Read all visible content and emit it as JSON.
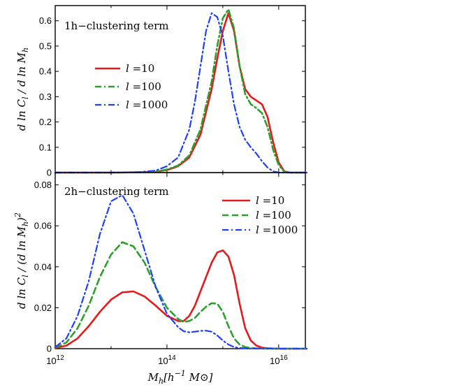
{
  "figure": {
    "xlabel_main": "M",
    "xlabel_sub": "h",
    "xlabel_rest": "[h",
    "xlabel_exp": "−1",
    "xlabel_end": " M⊙]",
    "x_ticks": [
      {
        "value": 1000000000000.0,
        "base": "10",
        "exp": "12"
      },
      {
        "value": 100000000000000.0,
        "base": "10",
        "exp": "14"
      },
      {
        "value": 1e+16,
        "base": "10",
        "exp": "16"
      }
    ],
    "xlim": [
      1000000000000.0,
      3e+16
    ]
  },
  "chart_data": [
    {
      "type": "line",
      "panel": "top",
      "annotation": "1h−clustering term",
      "ylabel": "d ln C_l / d ln M_h",
      "ylabel_parts": {
        "a": "d ln C",
        "a_sub": "l",
        "b": " / d ln M",
        "b_sub": "h"
      },
      "xscale": "log",
      "xlim": [
        1000000000000.0,
        3e+16
      ],
      "ylim": [
        0,
        0.66
      ],
      "y_ticks": [
        "0",
        "0.1",
        "0.2",
        "0.3",
        "0.4",
        "0.5",
        "0.6"
      ],
      "legend_position": "center-left",
      "series": [
        {
          "name": "l =10",
          "legend_l": "l",
          "legend_val": " =10",
          "color": "#e41a1c",
          "style": "solid",
          "width": 2.6,
          "log_x": [
            12.0,
            13.0,
            13.5,
            13.8,
            14.0,
            14.2,
            14.4,
            14.6,
            14.8,
            14.9,
            15.0,
            15.1,
            15.2,
            15.3,
            15.4,
            15.5,
            15.6,
            15.7,
            15.8,
            15.9,
            16.0,
            16.1,
            16.2,
            16.5
          ],
          "y": [
            0,
            0,
            0.001,
            0.003,
            0.01,
            0.025,
            0.06,
            0.15,
            0.33,
            0.45,
            0.56,
            0.63,
            0.56,
            0.42,
            0.33,
            0.3,
            0.285,
            0.27,
            0.22,
            0.12,
            0.04,
            0.005,
            0,
            0
          ]
        },
        {
          "name": "l =100",
          "legend_l": "l",
          "legend_val": " =100",
          "color": "#2ca02c",
          "style": "dash-dot",
          "width": 2.6,
          "log_x": [
            12.0,
            13.0,
            13.5,
            13.8,
            14.0,
            14.2,
            14.4,
            14.6,
            14.8,
            14.9,
            15.0,
            15.1,
            15.2,
            15.3,
            15.4,
            15.5,
            15.6,
            15.7,
            15.8,
            15.9,
            16.0,
            16.1,
            16.2,
            16.5
          ],
          "y": [
            0,
            0,
            0.001,
            0.004,
            0.012,
            0.028,
            0.068,
            0.17,
            0.36,
            0.5,
            0.61,
            0.645,
            0.57,
            0.42,
            0.31,
            0.27,
            0.255,
            0.235,
            0.18,
            0.09,
            0.03,
            0.004,
            0,
            0
          ]
        },
        {
          "name": "l =1000",
          "legend_l": "l",
          "legend_val": " =1000",
          "color": "#1f3fff",
          "style": "dash-dot",
          "width": 2.2,
          "log_x": [
            12.0,
            13.0,
            13.5,
            13.8,
            14.0,
            14.2,
            14.4,
            14.5,
            14.6,
            14.7,
            14.8,
            14.9,
            15.0,
            15.1,
            15.2,
            15.3,
            15.4,
            15.5,
            15.6,
            15.7,
            15.8,
            15.9,
            16.0,
            16.5
          ],
          "y": [
            0,
            0,
            0.002,
            0.008,
            0.025,
            0.06,
            0.17,
            0.28,
            0.42,
            0.56,
            0.63,
            0.615,
            0.54,
            0.4,
            0.27,
            0.18,
            0.13,
            0.1,
            0.075,
            0.045,
            0.02,
            0.005,
            0,
            0
          ]
        }
      ]
    },
    {
      "type": "line",
      "panel": "bottom",
      "annotation": "2h−clustering term",
      "ylabel": "d ln C_l / (d ln M_h)^2",
      "ylabel_parts": {
        "a": "d ln C",
        "a_sub": "l",
        "b": " / (d ln M",
        "b_sub": "h",
        "c": ")",
        "c_sup": "2"
      },
      "xscale": "log",
      "xlim": [
        1000000000000.0,
        3e+16
      ],
      "ylim": [
        0,
        0.086
      ],
      "y_ticks": [
        "0",
        "0.02",
        "0.04",
        "0.06",
        "0.08"
      ],
      "legend_position": "top-right",
      "series": [
        {
          "name": "l =10",
          "legend_l": "l",
          "legend_val": " =10",
          "color": "#e41a1c",
          "style": "solid",
          "width": 2.6,
          "log_x": [
            12.0,
            12.2,
            12.4,
            12.6,
            12.8,
            13.0,
            13.2,
            13.4,
            13.6,
            13.8,
            14.0,
            14.2,
            14.3,
            14.4,
            14.5,
            14.6,
            14.7,
            14.8,
            14.9,
            15.0,
            15.1,
            15.2,
            15.3,
            15.4,
            15.5,
            15.6,
            15.7,
            15.8,
            16.0,
            16.5
          ],
          "y": [
            0.0003,
            0.0015,
            0.005,
            0.011,
            0.018,
            0.024,
            0.0275,
            0.028,
            0.0255,
            0.021,
            0.016,
            0.0135,
            0.0135,
            0.016,
            0.021,
            0.028,
            0.035,
            0.042,
            0.047,
            0.048,
            0.045,
            0.036,
            0.022,
            0.01,
            0.004,
            0.0015,
            0.0005,
            0.0002,
            0,
            0
          ]
        },
        {
          "name": "l =100",
          "legend_l": "l",
          "legend_val": " =100",
          "color": "#2ca02c",
          "style": "dashed",
          "width": 2.6,
          "log_x": [
            12.0,
            12.2,
            12.4,
            12.6,
            12.8,
            13.0,
            13.2,
            13.4,
            13.6,
            13.8,
            14.0,
            14.2,
            14.3,
            14.4,
            14.5,
            14.6,
            14.7,
            14.8,
            14.9,
            15.0,
            15.1,
            15.2,
            15.3,
            15.4,
            15.5,
            15.6,
            15.8,
            16.5
          ],
          "y": [
            0.0005,
            0.003,
            0.01,
            0.021,
            0.035,
            0.046,
            0.052,
            0.05,
            0.042,
            0.03,
            0.02,
            0.0145,
            0.013,
            0.0135,
            0.015,
            0.018,
            0.0205,
            0.0222,
            0.022,
            0.018,
            0.011,
            0.005,
            0.002,
            0.0008,
            0.0003,
            0.0001,
            0,
            0
          ]
        },
        {
          "name": "l =1000",
          "legend_l": "l",
          "legend_val": " =1000",
          "color": "#1f3fff",
          "style": "dash-dot",
          "width": 2.2,
          "log_x": [
            12.0,
            12.2,
            12.4,
            12.6,
            12.8,
            13.0,
            13.2,
            13.4,
            13.6,
            13.8,
            14.0,
            14.2,
            14.3,
            14.4,
            14.5,
            14.6,
            14.7,
            14.8,
            14.9,
            15.0,
            15.1,
            15.2,
            15.3,
            15.5,
            16.0,
            16.5
          ],
          "y": [
            0.0008,
            0.005,
            0.016,
            0.033,
            0.056,
            0.072,
            0.075,
            0.066,
            0.048,
            0.03,
            0.017,
            0.0105,
            0.0085,
            0.008,
            0.0083,
            0.0087,
            0.0088,
            0.0083,
            0.0065,
            0.004,
            0.002,
            0.0008,
            0.0003,
            0.0001,
            0,
            0
          ]
        }
      ]
    }
  ]
}
